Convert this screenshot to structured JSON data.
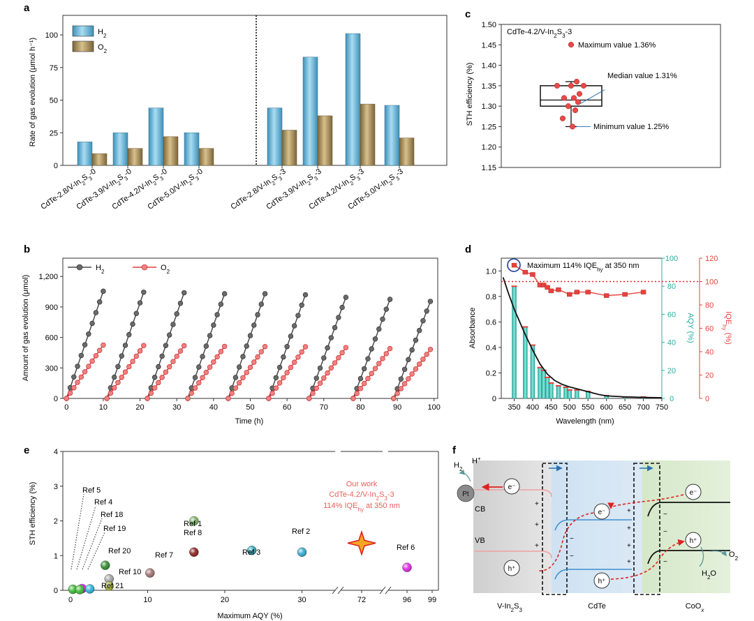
{
  "panel_labels": {
    "a": "a",
    "b": "b",
    "c": "c",
    "d": "d",
    "e": "e",
    "f": "f"
  },
  "colors": {
    "h2_bar": "#6fb8d8",
    "o2_bar": "#b59c66",
    "h2_line": "#4a4a4a",
    "o2_line": "#e03c3c",
    "aqy": "#3cc8bc",
    "iqe": "#e8423c"
  },
  "chart_data": [
    {
      "id": "a",
      "type": "bar",
      "title": "",
      "ylabel": "Rate of gas evolution (μmol h⁻¹)",
      "ylim": [
        0,
        115
      ],
      "yticks": [
        0,
        25,
        50,
        75,
        100
      ],
      "categories": [
        "CdTe-2.8/V-In2S3-0",
        "CdTe-3.9/V-In2S3-0",
        "CdTe-4.2/V-In2S3-0",
        "CdTe-5.0/V-In2S3-0",
        "CdTe-2.8/V-In2S3-3",
        "CdTe-3.9/V-In2S3-3",
        "CdTe-4.2/V-In2S3-3",
        "CdTe-5.0/V-In2S3-3"
      ],
      "series": [
        {
          "name": "H2",
          "values": [
            18,
            25,
            44,
            25,
            44,
            83,
            101,
            46
          ]
        },
        {
          "name": "O2",
          "values": [
            9,
            13,
            22,
            13,
            27,
            38,
            47,
            21
          ]
        }
      ],
      "legend": "top-left",
      "divider_after": 4
    },
    {
      "id": "b",
      "type": "line",
      "title": "",
      "xlabel": "Time (h)",
      "ylabel": "Amount of gas evolution (μmol)",
      "xlim": [
        -1,
        101
      ],
      "ylim": [
        0,
        1380
      ],
      "xticks": [
        0,
        10,
        20,
        30,
        40,
        50,
        60,
        70,
        80,
        90,
        100
      ],
      "yticks": [
        0,
        300,
        600,
        900,
        1200
      ],
      "ytick_labels": [
        "0",
        "300",
        "600",
        "900",
        "1,200"
      ],
      "cycle_starts": [
        0,
        11,
        22,
        33,
        44,
        55,
        66,
        78,
        89
      ],
      "cycle_duration_h": 10,
      "series": [
        {
          "name": "H2",
          "cycle_end_values": [
            1055,
            1045,
            1040,
            1030,
            1030,
            1020,
            995,
            975,
            955
          ]
        },
        {
          "name": "O2",
          "cycle_end_values": [
            525,
            520,
            518,
            512,
            510,
            508,
            500,
            490,
            482
          ]
        }
      ],
      "legend": "top-left"
    },
    {
      "id": "c",
      "type": "box",
      "title": "CdTe-4.2/V-In2S3-3",
      "ylabel": "STH efficiency (%)",
      "ylim": [
        1.15,
        1.5
      ],
      "yticks": [
        1.15,
        1.2,
        1.25,
        1.3,
        1.35,
        1.4,
        1.45,
        1.5
      ],
      "ytick_labels": [
        "1.15",
        "1.20",
        "1.25",
        "1.30",
        "1.35",
        "1.40",
        "1.45",
        "1.50"
      ],
      "box": {
        "min": 1.25,
        "q1": 1.3,
        "median": 1.315,
        "q3": 1.35,
        "max": 1.36
      },
      "points": [
        1.25,
        1.27,
        1.29,
        1.3,
        1.31,
        1.32,
        1.32,
        1.33,
        1.35,
        1.35,
        1.35,
        1.36
      ],
      "annotations": [
        "Maximum value 1.36%",
        "Median value 1.31%",
        "Minimum value 1.25%"
      ]
    },
    {
      "id": "d",
      "type": "bar+line",
      "title": "",
      "xlabel": "Wavelength (nm)",
      "ylabel_left": "Absorbance",
      "ylabel_mid": "AQY (%)",
      "ylabel_right": "IQE",
      "xlim": [
        315,
        750
      ],
      "xticks": [
        350,
        400,
        450,
        500,
        550,
        600,
        650,
        700,
        750
      ],
      "ylim_left": [
        0,
        1.1
      ],
      "yticks_left": [
        0,
        0.2,
        0.4,
        0.6,
        0.8,
        1.0
      ],
      "ytick_labels_left": [
        "0",
        "0.2",
        "0.4",
        "0.6",
        "0.8",
        "1.0"
      ],
      "ylim_mid": [
        0,
        100
      ],
      "yticks_mid": [
        0,
        20,
        40,
        60,
        80,
        100
      ],
      "ylim_right": [
        0,
        120
      ],
      "yticks_right": [
        0,
        20,
        40,
        60,
        80,
        100,
        120
      ],
      "aqy_wavelengths": [
        350,
        380,
        400,
        420,
        430,
        440,
        450,
        470,
        490,
        500,
        520,
        550,
        600,
        650,
        700
      ],
      "aqy_values": [
        80,
        51,
        38,
        22,
        20,
        15,
        11,
        9,
        8,
        6,
        6,
        5,
        2,
        1,
        1
      ],
      "iqe_wavelengths": [
        350,
        380,
        400,
        420,
        430,
        440,
        450,
        470,
        500,
        520,
        550,
        600,
        650,
        700
      ],
      "iqe_values": [
        114,
        108,
        106,
        97,
        97,
        95,
        92,
        93,
        89,
        91,
        91,
        88,
        89,
        91
      ],
      "absorbance_x": [
        320,
        335,
        350,
        365,
        380,
        400,
        420,
        440,
        460,
        480,
        500,
        520,
        540,
        560,
        580,
        600,
        650,
        700,
        750
      ],
      "absorbance_y": [
        0.95,
        0.82,
        0.7,
        0.6,
        0.5,
        0.38,
        0.27,
        0.19,
        0.14,
        0.11,
        0.09,
        0.075,
        0.06,
        0.045,
        0.03,
        0.02,
        0.012,
        0.008,
        0.005
      ],
      "reference_line": 100,
      "annotation": "Maximum 114% IQEhy at 350 nm"
    },
    {
      "id": "e",
      "type": "scatter",
      "title": "",
      "xlabel": "Maximum AQY (%)",
      "ylabel": "STH efficiency (%)",
      "ylim": [
        0,
        4
      ],
      "yticks": [
        0,
        1,
        2,
        3,
        4
      ],
      "xtick_labels": [
        "0",
        "10",
        "20",
        "30",
        "72",
        "96",
        "99"
      ],
      "points": [
        {
          "label": "Ref 5",
          "x": 0.3,
          "y": 0.03,
          "color": "#3ab830"
        },
        {
          "label": "Ref 4",
          "x": 1.5,
          "y": 0.05,
          "color": "#c82ad8"
        },
        {
          "label": "Ref 18",
          "x": 2.5,
          "y": 0.04,
          "color": "#28b0d8"
        },
        {
          "label": "Ref 19",
          "x": 1.2,
          "y": 0.02,
          "color": "#3ab830"
        },
        {
          "label": "Ref 20",
          "x": 4.5,
          "y": 0.72,
          "color": "#2a8a2a"
        },
        {
          "label": "Ref 10",
          "x": 5,
          "y": 0.33,
          "color": "#a0a0a0"
        },
        {
          "label": "Ref 21",
          "x": 5,
          "y": 0.12,
          "color": "#a8b834"
        },
        {
          "label": "Ref 7",
          "x": 10.3,
          "y": 0.5,
          "color": "#a07070"
        },
        {
          "label": "Ref 1",
          "x": 16,
          "y": 2.0,
          "color": "#78b060"
        },
        {
          "label": "Ref 8",
          "x": 16,
          "y": 1.1,
          "color": "#8a1a1a"
        },
        {
          "label": "Ref 3",
          "x": 23.5,
          "y": 1.15,
          "color": "#28a0b0"
        },
        {
          "label": "Ref 2",
          "x": 30,
          "y": 1.1,
          "color": "#30a8d0"
        },
        {
          "label": "Ref 6",
          "x": 96,
          "y": 0.66,
          "color": "#e020e0"
        },
        {
          "label": "Our work",
          "x": 72,
          "y": 1.36,
          "color": "#f0a020"
        }
      ],
      "our_work_text": [
        "Our work",
        "CdTe-4.2/V-In2S3-3",
        "114% IQEhy at 350 nm"
      ]
    }
  ],
  "schematic_f": {
    "materials": [
      "V-In2S3",
      "CdTe",
      "CoOx"
    ],
    "bands": [
      "CB",
      "VB"
    ],
    "cocatalyst": "Pt",
    "species": {
      "h2": "H2",
      "h_plus": "H+",
      "h2o": "H2O",
      "o2": "O2"
    },
    "carriers": {
      "electron": "e⁻",
      "hole": "h⁺"
    }
  }
}
